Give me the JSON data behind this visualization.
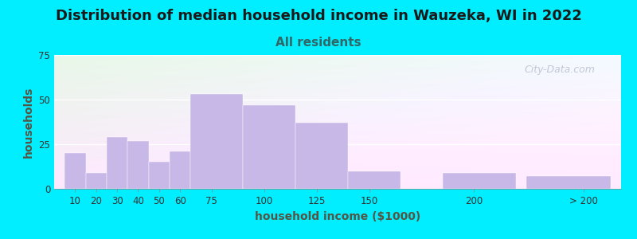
{
  "title": "Distribution of median household income in Wauzeka, WI in 2022",
  "subtitle": "All residents",
  "xlabel": "household income ($1000)",
  "ylabel": "households",
  "bar_color": "#c8b8e8",
  "background_outer": "#00eeff",
  "background_grad_top": "#e8f8e8",
  "background_grad_bottom": "#e8eeff",
  "title_color": "#1a1a1a",
  "subtitle_color": "#336666",
  "label_color": "#555544",
  "tick_color": "#333333",
  "values": [
    20,
    9,
    29,
    27,
    15,
    21,
    53,
    47,
    37,
    10,
    9,
    7
  ],
  "bar_lefts": [
    5,
    15,
    25,
    35,
    45,
    55,
    65,
    90,
    115,
    140,
    185,
    225
  ],
  "bar_widths": [
    10,
    10,
    10,
    10,
    10,
    10,
    25,
    25,
    25,
    25,
    35,
    40
  ],
  "xtick_positions": [
    10,
    20,
    30,
    40,
    50,
    60,
    75,
    100,
    125,
    150,
    200,
    252
  ],
  "xtick_labels": [
    "10",
    "20",
    "30",
    "40",
    "50",
    "60",
    "75",
    "100",
    "125",
    "150",
    "200",
    "> 200"
  ],
  "xlim": [
    0,
    270
  ],
  "ylim": [
    0,
    75
  ],
  "yticks": [
    0,
    25,
    50,
    75
  ],
  "title_fontsize": 13,
  "subtitle_fontsize": 11,
  "axis_label_fontsize": 10,
  "tick_fontsize": 8.5,
  "watermark": "City-Data.com"
}
